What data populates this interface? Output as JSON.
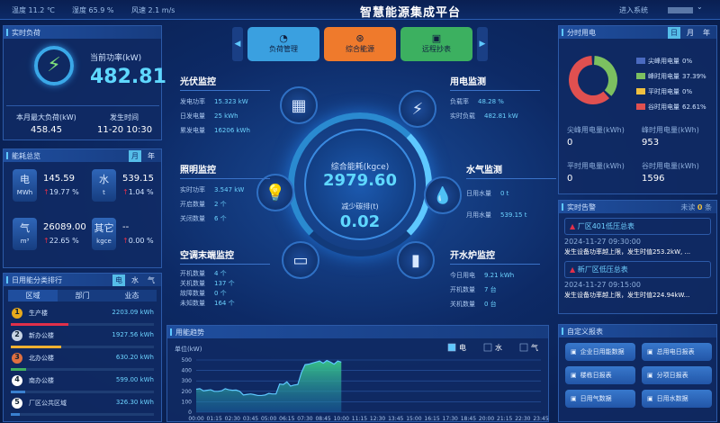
{
  "header": {
    "weather": [
      "温度 11.2 ℃",
      "湿度 65.9 %",
      "风速 2.1 m/s"
    ],
    "title": "智慧能源集成平台",
    "enter": "进入系统",
    "user_chevron": "⌄"
  },
  "realtime": {
    "title": "实时负荷",
    "power_label": "当前功率(kW)",
    "power": "482.81",
    "max_label": "本月最大负荷(kW)",
    "max": "458.45",
    "time_label": "发生时间",
    "time": "11-20 10:30"
  },
  "overview": {
    "title": "能耗总览",
    "tabs": [
      "月",
      "年"
    ],
    "items": [
      {
        "name": "电",
        "unit": "MWh",
        "value": "145.59",
        "change": "19.77 %"
      },
      {
        "name": "水",
        "unit": "t",
        "value": "539.15",
        "change": "1.04 %"
      },
      {
        "name": "气",
        "unit": "m³",
        "value": "26089.00",
        "change": "22.65 %"
      },
      {
        "name": "其它",
        "unit": "kgce",
        "value": "--",
        "change": "0.00 %"
      }
    ]
  },
  "ranking": {
    "title": "日用能分类排行",
    "tabs": [
      "电",
      "水",
      "气"
    ],
    "subtabs": [
      "区域",
      "部门",
      "业态"
    ],
    "items": [
      {
        "rank": "1",
        "name": "生产楼",
        "value": "2203.09 kWh",
        "pct": 0.4,
        "color": "#e0304a",
        "badge": "#e8a91c"
      },
      {
        "rank": "2",
        "name": "新办公楼",
        "value": "1927.56 kWh",
        "pct": 0.35,
        "color": "#f0b030",
        "badge": "#c8d4e4"
      },
      {
        "rank": "3",
        "name": "北办公楼",
        "value": "630.20 kWh",
        "pct": 0.11,
        "color": "#40b060",
        "badge": "#e07040"
      },
      {
        "rank": "4",
        "name": "南办公楼",
        "value": "599.00 kWh",
        "pct": 0.1,
        "color": "#3a80d0",
        "badge": "#ffffff"
      },
      {
        "rank": "5",
        "name": "厂区公共区域",
        "value": "326.30 kWh",
        "pct": 0.06,
        "color": "#3a80d0",
        "badge": "#ffffff"
      }
    ]
  },
  "nav": {
    "buttons": [
      {
        "label": "负荷管理",
        "icon": "◔",
        "color": "#3aa0e0"
      },
      {
        "label": "综合能源",
        "icon": "⊛",
        "color": "#ef7a2c"
      },
      {
        "label": "远程抄表",
        "icon": "▣",
        "color": "#3cb060"
      }
    ],
    "prev": "◀",
    "next": "▶"
  },
  "monitors": {
    "pv": {
      "title": "光伏监控",
      "rows": [
        [
          "发电功率",
          "15.323 kW"
        ],
        [
          "日发电量",
          "25 kWh"
        ],
        [
          "累发电量",
          "16206 kWh"
        ]
      ]
    },
    "light": {
      "title": "照明监控",
      "rows": [
        [
          "实时功率",
          "3.547 kW"
        ],
        [
          "开启数量",
          "2 个"
        ],
        [
          "关闭数量",
          "6 个"
        ]
      ]
    },
    "ac": {
      "title": "空调末端监控",
      "rows": [
        [
          "开机数量",
          "4 个"
        ],
        [
          "关机数量",
          "137 个"
        ],
        [
          "故障数量",
          "0 个"
        ],
        [
          "未知数量",
          "164 个"
        ]
      ]
    },
    "elec": {
      "title": "用电监测",
      "rows": [
        [
          "负载率",
          "48.28 %"
        ],
        [
          "实时负载",
          "482.81 kW"
        ]
      ]
    },
    "water": {
      "title": "水气监测",
      "rows": [
        [
          "日用水量",
          "0 t"
        ],
        [
          "月用水量",
          "539.15 t"
        ]
      ]
    },
    "boiler": {
      "title": "开水炉监控",
      "rows": [
        [
          "今日用电",
          "9.21 kWh"
        ],
        [
          "开机数量",
          "7 台"
        ],
        [
          "关机数量",
          "0 台"
        ]
      ]
    }
  },
  "center": {
    "energy_label": "综合能耗(kgce)",
    "energy": "2979.60",
    "carbon_label": "减少碳排(t)",
    "carbon": "0.02"
  },
  "tou": {
    "title": "分时用电",
    "tabs": [
      "日",
      "月",
      "年"
    ],
    "legend": [
      {
        "label": "尖峰用电量",
        "pct": "0%",
        "value": 0,
        "color": "#4a6ac0"
      },
      {
        "label": "峰时用电量",
        "pct": "37.39%",
        "value": 37.39,
        "color": "#7cc060"
      },
      {
        "label": "平时用电量",
        "pct": "0%",
        "value": 0,
        "color": "#f0c040"
      },
      {
        "label": "谷时用电量",
        "pct": "62.61%",
        "value": 62.61,
        "color": "#e05050"
      }
    ],
    "stats": [
      {
        "label": "尖峰用电量(kWh)",
        "value": "0"
      },
      {
        "label": "峰时用电量(kWh)",
        "value": "953"
      },
      {
        "label": "平时用电量(kWh)",
        "value": "0"
      },
      {
        "label": "谷时用电量(kWh)",
        "value": "1596"
      }
    ]
  },
  "alarms": {
    "title": "实时告警",
    "unread_label": "未读",
    "unread": "0",
    "unit": "条",
    "items": [
      {
        "name": "厂区401低压总表",
        "time": "2024-11-27 09:30:00",
        "desc": "发生设备功率越上限，发生时值253.2kW, ..."
      },
      {
        "name": "新厂区低压总表",
        "time": "2024-11-27 09:15:00",
        "desc": "发生设备功率越上限，发生时值224.94kW..."
      }
    ]
  },
  "reports": {
    "title": "自定义报表",
    "items": [
      "企业日用能数据",
      "总用电日报表",
      "楼栋日报表",
      "分项日报表",
      "日用气数据",
      "日用水数据"
    ]
  },
  "chart_data": {
    "type": "area",
    "title": "用能趋势",
    "ylabel": "单位(kW)",
    "ylim": [
      0,
      500
    ],
    "yticks": [
      0,
      100,
      200,
      300,
      400,
      500
    ],
    "legend": [
      {
        "label": "电",
        "checked": true
      },
      {
        "label": "水",
        "checked": false
      },
      {
        "label": "气",
        "checked": false
      }
    ],
    "xticks": [
      "00:00",
      "01:15",
      "02:30",
      "03:45",
      "05:00",
      "06:15",
      "07:30",
      "08:45",
      "10:00",
      "11:15",
      "12:30",
      "13:45",
      "15:00",
      "16:15",
      "17:30",
      "18:45",
      "20:00",
      "21:15",
      "22:30",
      "23:45"
    ],
    "series": [
      {
        "name": "电",
        "color": "#5ec8ff",
        "x_step_minutes": 15,
        "values": [
          220,
          225,
          205,
          210,
          215,
          200,
          200,
          205,
          225,
          215,
          210,
          212,
          200,
          165,
          170,
          175,
          168,
          160,
          160,
          165,
          180,
          175,
          175,
          270,
          265,
          290,
          250,
          260,
          265,
          380,
          455,
          460,
          470,
          480,
          490,
          470,
          495,
          480,
          460,
          490,
          480
        ]
      }
    ]
  }
}
